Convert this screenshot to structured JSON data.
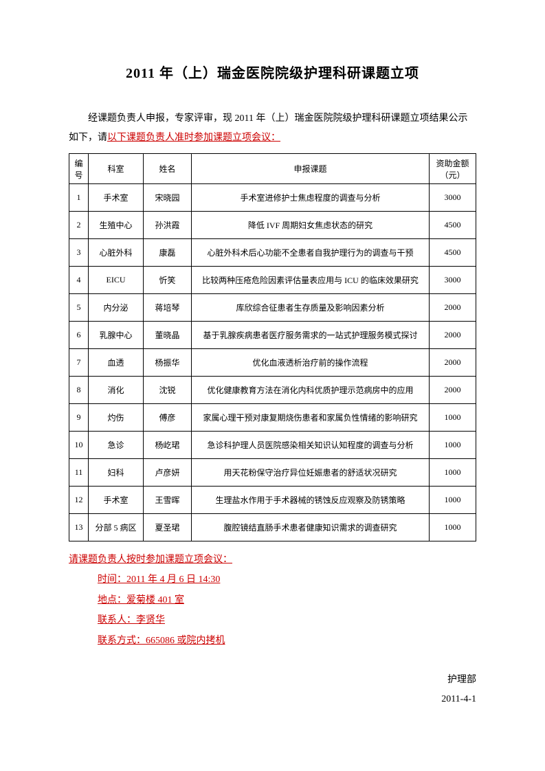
{
  "title": "2011 年（上）瑞金医院院级护理科研课题立项",
  "intro_prefix": "经课题负责人申报，专家评审，现 2011 年（上）瑞金医院院级护理科研课题立项结果公示如下，请",
  "intro_redlink": "以下课题负责人准时参加课题立项会议：",
  "headers": {
    "num": "编号",
    "dept": "科室",
    "name": "姓名",
    "topic": "申报课题",
    "amount": "资助金额（元）"
  },
  "rows": [
    {
      "num": "1",
      "dept": "手术室",
      "name": "宋晓园",
      "topic": "手术室进修护士焦虑程度的调查与分析",
      "amount": "3000"
    },
    {
      "num": "2",
      "dept": "生殖中心",
      "name": "孙洪霞",
      "topic": "降低 IVF 周期妇女焦虑状态的研究",
      "amount": "4500"
    },
    {
      "num": "3",
      "dept": "心脏外科",
      "name": "康磊",
      "topic": "心脏外科术后心功能不全患者自我护理行为的调查与干预",
      "amount": "4500"
    },
    {
      "num": "4",
      "dept": "EICU",
      "name": "忻笑",
      "topic": "比较两种压疮危险因素评估量表应用与 ICU 的临床效果研究",
      "amount": "3000"
    },
    {
      "num": "5",
      "dept": "内分泌",
      "name": "蒋培琴",
      "topic": "库欣综合征患者生存质量及影响因素分析",
      "amount": "2000"
    },
    {
      "num": "6",
      "dept": "乳腺中心",
      "name": "董晓晶",
      "topic": "基于乳腺疾病患者医疗服务需求的一站式护理服务模式探讨",
      "amount": "2000"
    },
    {
      "num": "7",
      "dept": "血透",
      "name": "杨振华",
      "topic": "优化血液透析治疗前的操作流程",
      "amount": "2000"
    },
    {
      "num": "8",
      "dept": "消化",
      "name": "沈锐",
      "topic": "优化健康教育方法在消化内科优质护理示范病房中的应用",
      "amount": "2000"
    },
    {
      "num": "9",
      "dept": "灼伤",
      "name": "傅彦",
      "topic": "家属心理干预对康复期烧伤患者和家属负性情绪的影响研究",
      "amount": "1000"
    },
    {
      "num": "10",
      "dept": "急诊",
      "name": "杨屹珺",
      "topic": "急诊科护理人员医院感染相关知识认知程度的调查与分析",
      "amount": "1000"
    },
    {
      "num": "11",
      "dept": "妇科",
      "name": "卢彦妍",
      "topic": "用天花粉保守治疗异位妊娠患者的舒适状况研究",
      "amount": "1000"
    },
    {
      "num": "12",
      "dept": "手术室",
      "name": "王雪晖",
      "topic": "生理盐水作用于手术器械的锈蚀反应观察及防锈策略",
      "amount": "1000"
    },
    {
      "num": "13",
      "dept": "分部 5 病区",
      "name": "夏圣珺",
      "topic": "腹腔镜结直肠手术患者健康知识需求的调查研究",
      "amount": "1000"
    }
  ],
  "notice": {
    "main": "请课题负责人按时参加课题立项会议：",
    "time": "时间：2011 年 4 月 6 日 14:30",
    "location": "地点：爱菊楼 401 室",
    "contact": "联系人：李贤华",
    "phone": "联系方式：665086 或院内拷机"
  },
  "signature": {
    "dept": "护理部",
    "date": "2011-4-1"
  }
}
